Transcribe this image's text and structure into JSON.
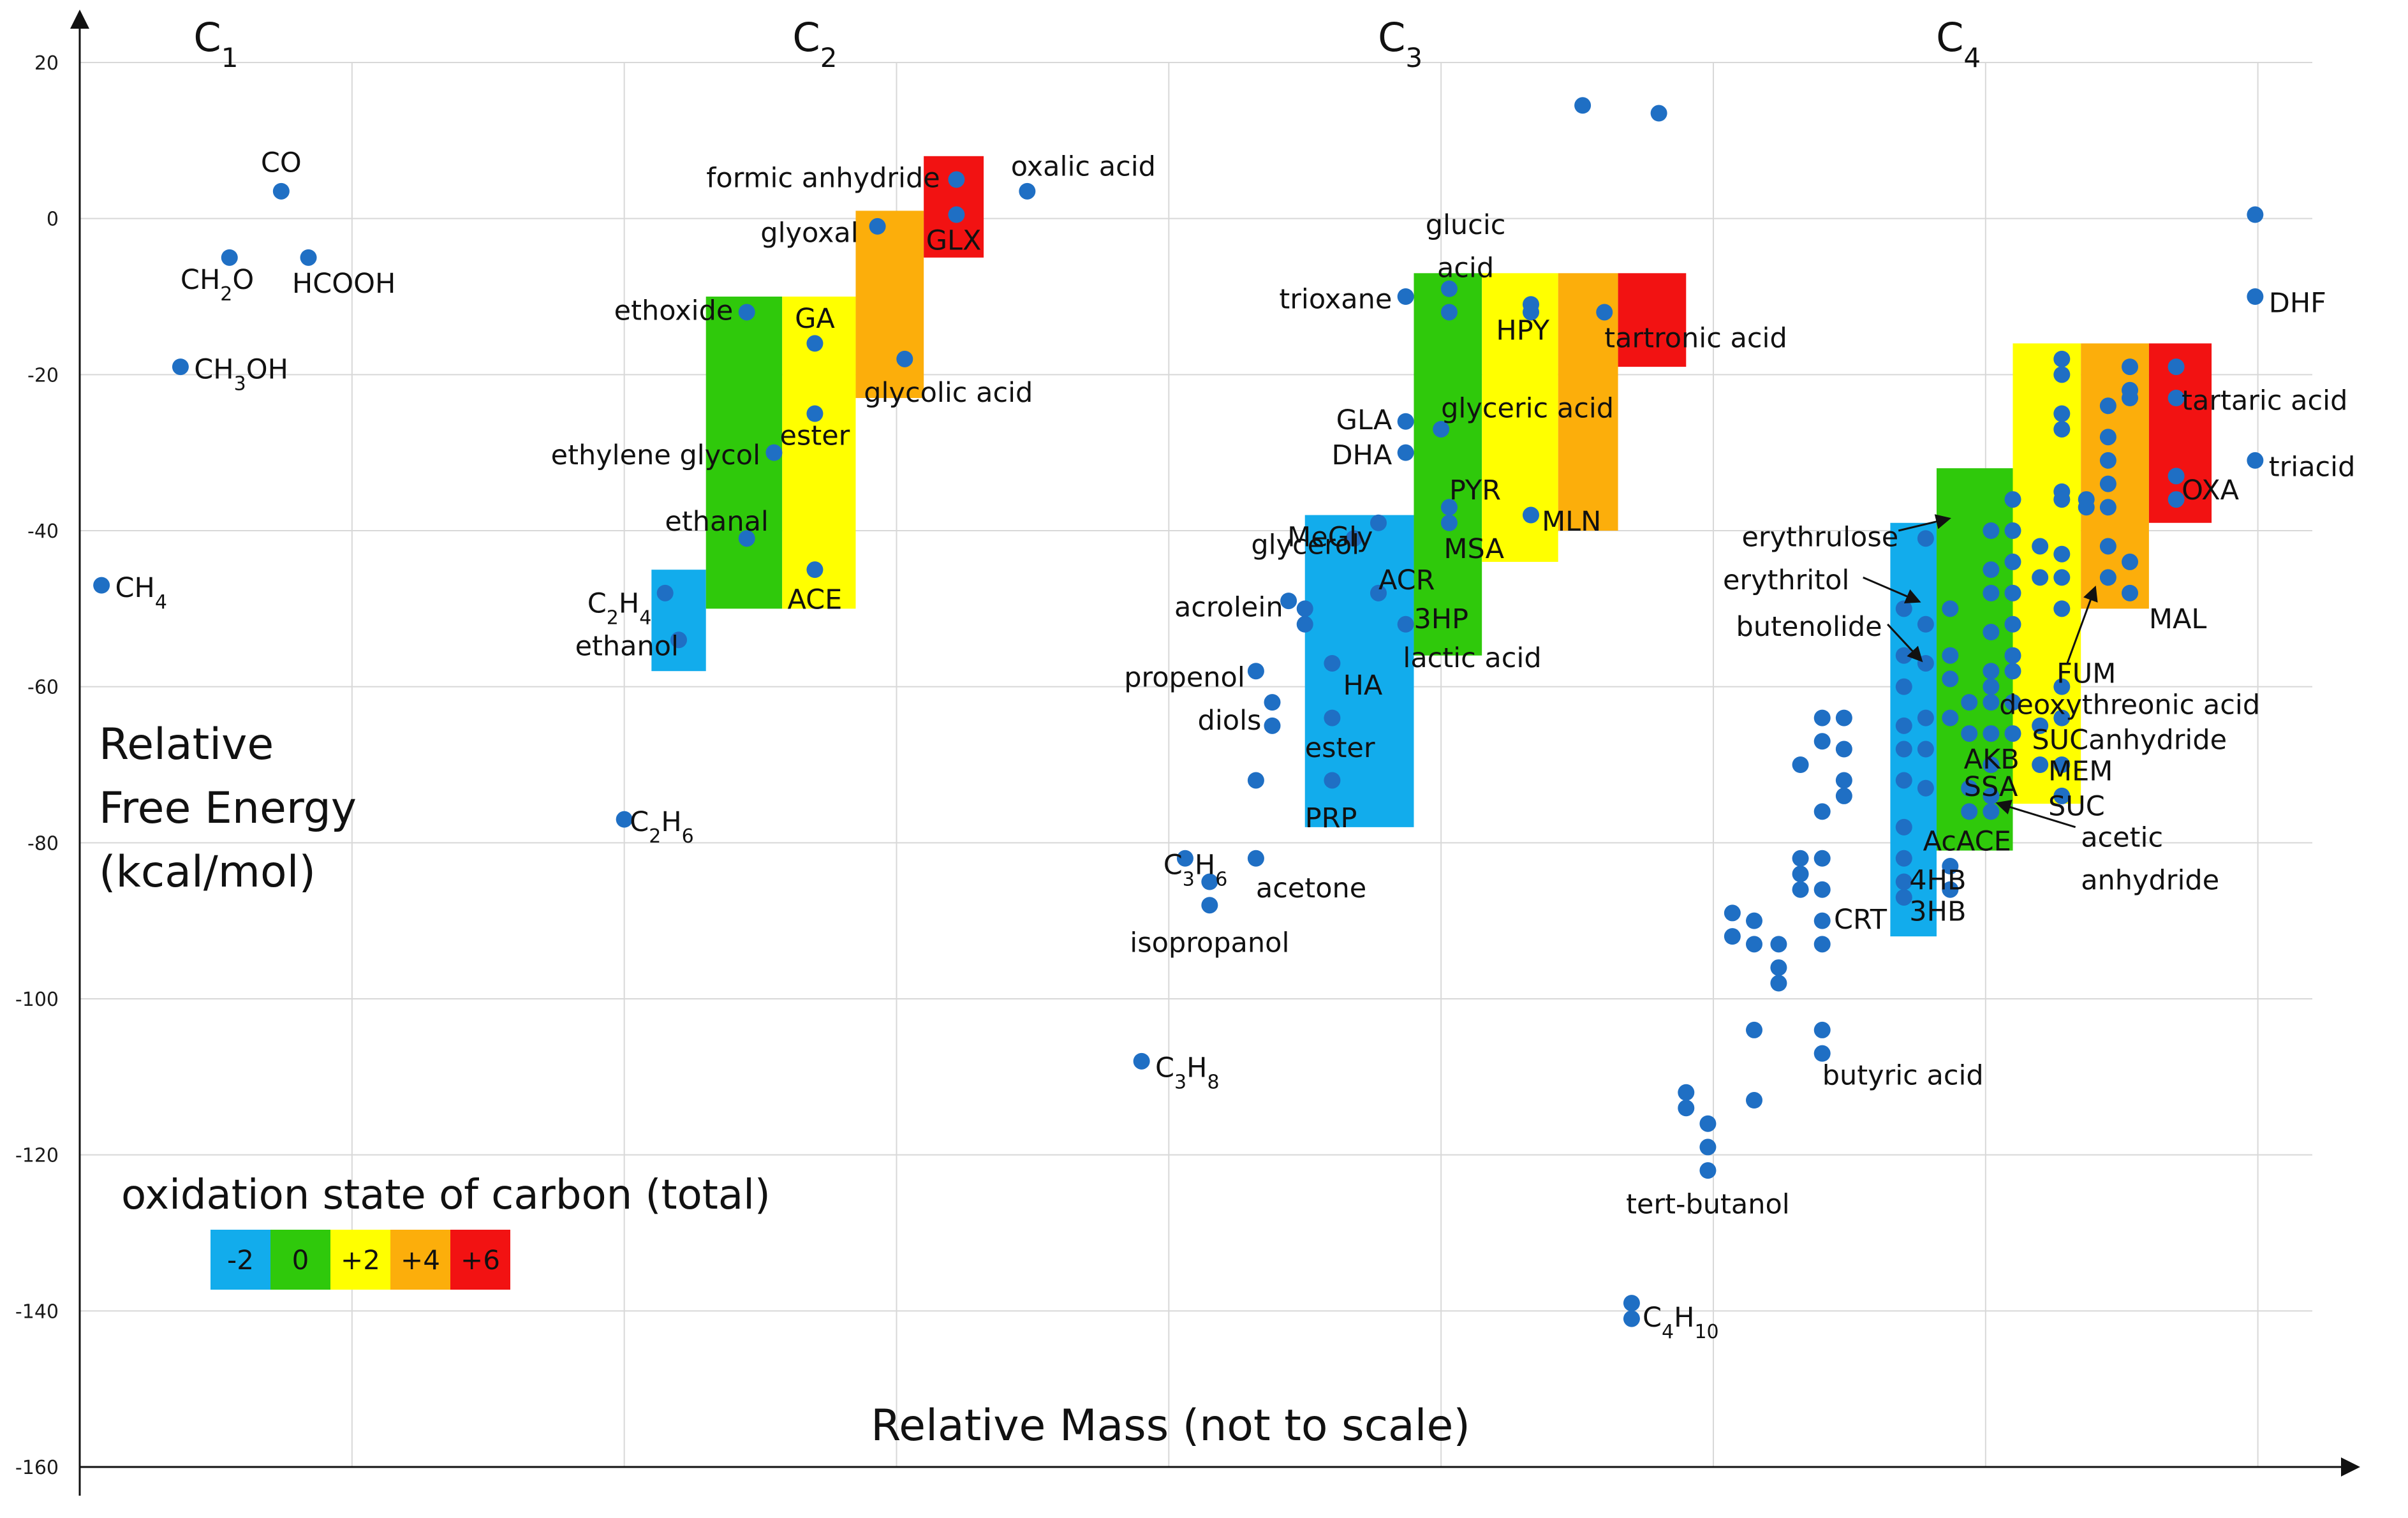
{
  "chart_data": {
    "type": "scatter",
    "title": "",
    "xlabel": "Relative Mass (not to scale)",
    "ylabel_lines": [
      "Relative",
      "Free Energy",
      "(kcal/mol)"
    ],
    "ylim": [
      -160,
      20
    ],
    "xlim": [
      0,
      8.2
    ],
    "y_ticks": [
      "20",
      "0",
      "-20",
      "-40",
      "-60",
      "-80",
      "-100",
      "-120",
      "-140",
      "-160"
    ],
    "grid": true,
    "groups": [
      {
        "base": "C",
        "sub": "1",
        "x": 0.5
      },
      {
        "base": "C",
        "sub": "2",
        "x": 2.7
      },
      {
        "base": "C",
        "sub": "3",
        "x": 4.85
      },
      {
        "base": "C",
        "sub": "4",
        "x": 6.9
      }
    ],
    "legend": {
      "title": "oxidation state of carbon (total)",
      "placement": "bottom-left",
      "items": [
        {
          "label": "-2",
          "color": "#12ACEC"
        },
        {
          "label": "0",
          "color": "#2FC90B"
        },
        {
          "label": "+2",
          "color": "#FFFF00"
        },
        {
          "label": "+4",
          "color": "#FCAE0B"
        },
        {
          "label": "+6",
          "color": "#F21212"
        }
      ]
    },
    "bands": [
      {
        "ox": "-2",
        "x0": 2.1,
        "x1": 2.3,
        "y0": -58,
        "y1": -45
      },
      {
        "ox": "0",
        "x0": 2.3,
        "x1": 2.58,
        "y0": -50,
        "y1": -10
      },
      {
        "ox": "+2",
        "x0": 2.58,
        "x1": 2.85,
        "y0": -50,
        "y1": -10
      },
      {
        "ox": "+4",
        "x0": 2.85,
        "x1": 3.1,
        "y0": -23,
        "y1": 1
      },
      {
        "ox": "+6",
        "x0": 3.1,
        "x1": 3.32,
        "y0": -5,
        "y1": 8
      },
      {
        "ox": "-2",
        "x0": 4.5,
        "x1": 4.9,
        "y0": -78,
        "y1": -38
      },
      {
        "ox": "0",
        "x0": 4.9,
        "x1": 5.15,
        "y0": -56,
        "y1": -7
      },
      {
        "ox": "+2",
        "x0": 5.15,
        "x1": 5.43,
        "y0": -44,
        "y1": -7
      },
      {
        "ox": "+4",
        "x0": 5.43,
        "x1": 5.65,
        "y0": -40,
        "y1": -7
      },
      {
        "ox": "+6",
        "x0": 5.65,
        "x1": 5.9,
        "y0": -19,
        "y1": -7
      },
      {
        "ox": "-2",
        "x0": 6.65,
        "x1": 6.82,
        "y0": -92,
        "y1": -39
      },
      {
        "ox": "0",
        "x0": 6.82,
        "x1": 7.1,
        "y0": -81,
        "y1": -32
      },
      {
        "ox": "+2",
        "x0": 7.1,
        "x1": 7.35,
        "y0": -75,
        "y1": -16
      },
      {
        "ox": "+4",
        "x0": 7.35,
        "x1": 7.6,
        "y0": -50,
        "y1": -16
      },
      {
        "ox": "+6",
        "x0": 7.6,
        "x1": 7.83,
        "y0": -39,
        "y1": -16
      }
    ],
    "points": [
      [
        0.08,
        -47
      ],
      [
        0.37,
        -19
      ],
      [
        0.55,
        -5
      ],
      [
        0.74,
        3.5
      ],
      [
        0.84,
        -5
      ],
      [
        2.0,
        -77
      ],
      [
        2.15,
        -48
      ],
      [
        2.2,
        -54
      ],
      [
        2.45,
        -12
      ],
      [
        2.55,
        -30
      ],
      [
        2.45,
        -41
      ],
      [
        2.7,
        -16
      ],
      [
        2.7,
        -25
      ],
      [
        2.7,
        -45
      ],
      [
        2.93,
        -1
      ],
      [
        3.03,
        -18
      ],
      [
        3.22,
        5
      ],
      [
        3.22,
        0.5
      ],
      [
        3.48,
        3.5
      ],
      [
        3.9,
        -108
      ],
      [
        4.06,
        -82
      ],
      [
        4.15,
        -85
      ],
      [
        4.15,
        -88
      ],
      [
        4.32,
        -58
      ],
      [
        4.38,
        -62
      ],
      [
        4.38,
        -65
      ],
      [
        4.32,
        -72
      ],
      [
        4.32,
        -82
      ],
      [
        4.44,
        -49
      ],
      [
        4.5,
        -50
      ],
      [
        4.5,
        -52
      ],
      [
        4.6,
        -57
      ],
      [
        4.6,
        -64
      ],
      [
        4.6,
        -72
      ],
      [
        4.68,
        -41
      ],
      [
        4.77,
        -39
      ],
      [
        4.77,
        -48
      ],
      [
        4.87,
        -26
      ],
      [
        4.87,
        -30
      ],
      [
        4.87,
        -10
      ],
      [
        4.87,
        -52
      ],
      [
        5.03,
        -9
      ],
      [
        5.03,
        -12
      ],
      [
        5.0,
        -27
      ],
      [
        5.03,
        -37
      ],
      [
        5.03,
        -39
      ],
      [
        5.33,
        -11
      ],
      [
        5.33,
        -12
      ],
      [
        5.33,
        -38
      ],
      [
        5.6,
        -12
      ],
      [
        5.52,
        14.5
      ],
      [
        5.8,
        13.5
      ],
      [
        5.9,
        -112
      ],
      [
        5.9,
        -114
      ],
      [
        5.98,
        -116
      ],
      [
        5.98,
        -119
      ],
      [
        5.98,
        -122
      ],
      [
        5.7,
        -139
      ],
      [
        5.7,
        -141
      ],
      [
        6.07,
        -89
      ],
      [
        6.07,
        -92
      ],
      [
        6.15,
        -90
      ],
      [
        6.15,
        -93
      ],
      [
        6.24,
        -93
      ],
      [
        6.24,
        -96
      ],
      [
        6.24,
        -98
      ],
      [
        6.15,
        -104
      ],
      [
        6.15,
        -113
      ],
      [
        6.32,
        -70
      ],
      [
        6.32,
        -82
      ],
      [
        6.32,
        -84
      ],
      [
        6.32,
        -86
      ],
      [
        6.4,
        -64
      ],
      [
        6.4,
        -67
      ],
      [
        6.4,
        -76
      ],
      [
        6.4,
        -82
      ],
      [
        6.4,
        -86
      ],
      [
        6.4,
        -90
      ],
      [
        6.4,
        -93
      ],
      [
        6.4,
        -104
      ],
      [
        6.4,
        -107
      ],
      [
        6.48,
        -64
      ],
      [
        6.48,
        -68
      ],
      [
        6.48,
        -72
      ],
      [
        6.48,
        -74
      ],
      [
        6.7,
        -50
      ],
      [
        6.7,
        -56
      ],
      [
        6.7,
        -60
      ],
      [
        6.7,
        -65
      ],
      [
        6.7,
        -68
      ],
      [
        6.7,
        -72
      ],
      [
        6.7,
        -78
      ],
      [
        6.7,
        -82
      ],
      [
        6.7,
        -85
      ],
      [
        6.7,
        -87
      ],
      [
        6.78,
        -41
      ],
      [
        6.78,
        -52
      ],
      [
        6.78,
        -57
      ],
      [
        6.78,
        -64
      ],
      [
        6.78,
        -68
      ],
      [
        6.78,
        -73
      ],
      [
        6.87,
        -50
      ],
      [
        6.87,
        -56
      ],
      [
        6.87,
        -59
      ],
      [
        6.87,
        -64
      ],
      [
        6.87,
        -83
      ],
      [
        6.87,
        -86
      ],
      [
        6.94,
        -62
      ],
      [
        6.94,
        -66
      ],
      [
        6.94,
        -73
      ],
      [
        6.94,
        -76
      ],
      [
        7.02,
        -40
      ],
      [
        7.02,
        -45
      ],
      [
        7.02,
        -48
      ],
      [
        7.02,
        -53
      ],
      [
        7.02,
        -58
      ],
      [
        7.02,
        -60
      ],
      [
        7.02,
        -62
      ],
      [
        7.02,
        -66
      ],
      [
        7.02,
        -70
      ],
      [
        7.02,
        -74
      ],
      [
        7.02,
        -76
      ],
      [
        7.1,
        -36
      ],
      [
        7.1,
        -40
      ],
      [
        7.1,
        -44
      ],
      [
        7.1,
        -48
      ],
      [
        7.1,
        -52
      ],
      [
        7.1,
        -56
      ],
      [
        7.1,
        -58
      ],
      [
        7.1,
        -62
      ],
      [
        7.1,
        -66
      ],
      [
        7.2,
        -42
      ],
      [
        7.2,
        -46
      ],
      [
        7.2,
        -65
      ],
      [
        7.2,
        -70
      ],
      [
        7.28,
        -18
      ],
      [
        7.28,
        -20
      ],
      [
        7.28,
        -25
      ],
      [
        7.28,
        -27
      ],
      [
        7.28,
        -35
      ],
      [
        7.28,
        -36
      ],
      [
        7.28,
        -43
      ],
      [
        7.28,
        -46
      ],
      [
        7.28,
        -50
      ],
      [
        7.28,
        -60
      ],
      [
        7.28,
        -64
      ],
      [
        7.28,
        -70
      ],
      [
        7.28,
        -74
      ],
      [
        7.37,
        -36
      ],
      [
        7.37,
        -37
      ],
      [
        7.45,
        -24
      ],
      [
        7.45,
        -28
      ],
      [
        7.45,
        -31
      ],
      [
        7.45,
        -34
      ],
      [
        7.45,
        -37
      ],
      [
        7.45,
        -42
      ],
      [
        7.45,
        -46
      ],
      [
        7.53,
        -19
      ],
      [
        7.53,
        -22
      ],
      [
        7.53,
        -23
      ],
      [
        7.53,
        -44
      ],
      [
        7.53,
        -48
      ],
      [
        7.7,
        -19
      ],
      [
        7.7,
        -23
      ],
      [
        7.7,
        -33
      ],
      [
        7.7,
        -36
      ],
      [
        7.99,
        0.5
      ],
      [
        7.99,
        -10
      ],
      [
        7.99,
        -31
      ]
    ],
    "labels": [
      {
        "t": "C",
        "sub": "1"
      },
      {
        "t": "C",
        "sub": "2"
      },
      {
        "t": "C",
        "sub": "3"
      },
      {
        "t": "C",
        "sub": "4"
      },
      {
        "t": "CO",
        "x": 0.74,
        "y": 6,
        "a": "middle"
      },
      {
        "t": "CH",
        "sub": "2",
        "post": "O",
        "x": 0.37,
        "y": -9,
        "a": "start"
      },
      {
        "t": "HCOOH",
        "x": 0.78,
        "y": -9.5,
        "a": "start"
      },
      {
        "t": "CH",
        "sub": "3",
        "post": "OH",
        "x": 0.42,
        "y": -20.5,
        "a": "start"
      },
      {
        "t": "CH",
        "sub": "4",
        "x": 0.13,
        "y": -48.5,
        "a": "start"
      },
      {
        "t": "C",
        "sub": "2",
        "post": "H",
        "sub2": "6",
        "x": 2.02,
        "y": -78.5,
        "a": "start"
      },
      {
        "t": "formic anhydride",
        "x": 3.16,
        "y": 4,
        "a": "end"
      },
      {
        "t": "oxalic acid",
        "x": 3.42,
        "y": 5.5,
        "a": "start"
      },
      {
        "t": "GLX",
        "x": 3.21,
        "y": -4,
        "a": "middle"
      },
      {
        "t": "glyoxal",
        "x": 2.86,
        "y": -3,
        "a": "end"
      },
      {
        "t": "ethoxide",
        "x": 2.4,
        "y": -13,
        "a": "end"
      },
      {
        "t": "GA",
        "x": 2.7,
        "y": -14,
        "a": "middle"
      },
      {
        "t": "glycolic acid",
        "x": 2.88,
        "y": -23.5,
        "a": "start"
      },
      {
        "t": "ester",
        "x": 2.7,
        "y": -29,
        "a": "middle"
      },
      {
        "t": "ethylene glycol",
        "x": 2.5,
        "y": -31.5,
        "a": "end"
      },
      {
        "t": "ethanal",
        "x": 2.53,
        "y": -40,
        "a": "end"
      },
      {
        "t": "ACE",
        "x": 2.7,
        "y": -50,
        "a": "middle"
      },
      {
        "t": "C",
        "sub": "2",
        "post": "H",
        "sub2": "4",
        "x": 2.1,
        "y": -50.5,
        "a": "end"
      },
      {
        "t": "ethanol",
        "x": 2.2,
        "y": -56,
        "a": "end"
      },
      {
        "t": "glucic",
        "x": 5.09,
        "y": -2,
        "a": "middle"
      },
      {
        "t": "acid",
        "x": 5.09,
        "y": -7.5,
        "a": "middle"
      },
      {
        "t": "trioxane",
        "x": 4.82,
        "y": -11.5,
        "a": "end"
      },
      {
        "t": "HPY",
        "x": 5.3,
        "y": -15.5,
        "a": "middle"
      },
      {
        "t": "tartronic acid",
        "x": 5.6,
        "y": -16.5,
        "a": "start"
      },
      {
        "t": "glyceric acid",
        "x": 5.0,
        "y": -25.5,
        "a": "start"
      },
      {
        "t": "GLA",
        "x": 4.82,
        "y": -27,
        "a": "end"
      },
      {
        "t": "DHA",
        "x": 4.82,
        "y": -31.5,
        "a": "end"
      },
      {
        "t": "PYR",
        "x": 5.03,
        "y": -36,
        "a": "start"
      },
      {
        "t": "MLN",
        "x": 5.37,
        "y": -40,
        "a": "start"
      },
      {
        "t": "MeGly",
        "x": 4.75,
        "y": -42,
        "a": "end"
      },
      {
        "t": "MSA",
        "x": 5.01,
        "y": -43.5,
        "a": "start"
      },
      {
        "t": "glycerol",
        "x": 4.7,
        "y": -43,
        "a": "end"
      },
      {
        "t": "ACR",
        "x": 4.77,
        "y": -47.5,
        "a": "start"
      },
      {
        "t": "acrolein",
        "x": 4.42,
        "y": -51,
        "a": "end"
      },
      {
        "t": "3HP",
        "x": 4.9,
        "y": -52.5,
        "a": "start"
      },
      {
        "t": "lactic acid",
        "x": 4.86,
        "y": -57.5,
        "a": "start"
      },
      {
        "t": "propenol",
        "x": 4.28,
        "y": -60,
        "a": "end"
      },
      {
        "t": "HA",
        "x": 4.64,
        "y": -61,
        "a": "start"
      },
      {
        "t": "diols",
        "x": 4.34,
        "y": -65.5,
        "a": "end"
      },
      {
        "t": "ester",
        "x": 4.5,
        "y": -69,
        "a": "start"
      },
      {
        "t": "PRP",
        "x": 4.5,
        "y": -78,
        "a": "start"
      },
      {
        "t": "C",
        "sub": "3",
        "post": "H",
        "sub2": "6",
        "x": 3.98,
        "y": -84,
        "a": "start"
      },
      {
        "t": "acetone",
        "x": 4.32,
        "y": -87,
        "a": "start"
      },
      {
        "t": "isopropanol",
        "x": 4.15,
        "y": -94,
        "a": "middle"
      },
      {
        "t": "C",
        "sub": "3",
        "post": "H",
        "sub2": "8",
        "x": 3.95,
        "y": -110,
        "a": "start"
      },
      {
        "t": "DHF",
        "x": 8.04,
        "y": -12,
        "a": "start"
      },
      {
        "t": "tartaric acid",
        "x": 7.72,
        "y": -24.5,
        "a": "start"
      },
      {
        "t": "triacid",
        "x": 8.04,
        "y": -33,
        "a": "start"
      },
      {
        "t": "OXA",
        "x": 7.72,
        "y": -36,
        "a": "start"
      },
      {
        "t": "erythrulose",
        "x": 6.68,
        "y": -42,
        "a": "end"
      },
      {
        "t": "erythritol",
        "x": 6.5,
        "y": -47.5,
        "a": "end"
      },
      {
        "t": "MAL",
        "x": 7.6,
        "y": -52.5,
        "a": "start"
      },
      {
        "t": "butenolide",
        "x": 6.62,
        "y": -53.5,
        "a": "end"
      },
      {
        "t": "FUM",
        "x": 7.37,
        "y": -59.5,
        "a": "middle"
      },
      {
        "t": "deoxythreonic acid",
        "x": 7.05,
        "y": -63.5,
        "a": "start"
      },
      {
        "t": "SUCanhydride",
        "x": 7.17,
        "y": -68,
        "a": "start"
      },
      {
        "t": "AKB",
        "x": 6.92,
        "y": -70.5,
        "a": "start"
      },
      {
        "t": "MEM",
        "x": 7.23,
        "y": -72,
        "a": "start"
      },
      {
        "t": "SSA",
        "x": 6.92,
        "y": -74,
        "a": "start"
      },
      {
        "t": "SUC",
        "x": 7.23,
        "y": -76.5,
        "a": "start"
      },
      {
        "t": "acetic",
        "x": 7.35,
        "y": -80.5,
        "a": "start"
      },
      {
        "t": "AcACE",
        "x": 6.77,
        "y": -81,
        "a": "start"
      },
      {
        "t": "anhydride",
        "x": 7.35,
        "y": -86,
        "a": "start"
      },
      {
        "t": "4HB",
        "x": 6.72,
        "y": -86,
        "a": "start"
      },
      {
        "t": "3HB",
        "x": 6.72,
        "y": -90,
        "a": "start"
      },
      {
        "t": "CRT",
        "x": 6.54,
        "y": -91,
        "a": "middle"
      },
      {
        "t": "butyric acid",
        "x": 6.4,
        "y": -111,
        "a": "start"
      },
      {
        "t": "tert-butanol",
        "x": 5.98,
        "y": -127.5,
        "a": "middle"
      },
      {
        "t": "C",
        "sub": "4",
        "post": "H",
        "sub2": "10",
        "x": 5.74,
        "y": -142,
        "a": "start"
      }
    ],
    "arrows": [
      [
        6.68,
        -40,
        6.86,
        -38.5
      ],
      [
        6.55,
        -46,
        6.75,
        -49
      ],
      [
        6.64,
        -52,
        6.76,
        -56.5
      ],
      [
        7.3,
        -57,
        7.4,
        -47.5
      ],
      [
        7.33,
        -78,
        7.05,
        -75
      ]
    ]
  }
}
